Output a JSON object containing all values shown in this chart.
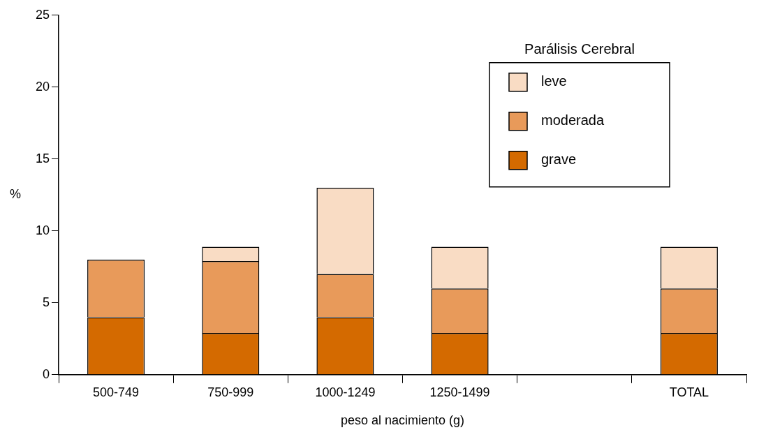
{
  "chart_data": {
    "type": "bar",
    "stacked": true,
    "xlabel": "peso al nacimiento (g)",
    "ylabel": "%",
    "legend_title": "Parálisis Cerebral",
    "legend": "top right",
    "grid": false,
    "categories": [
      "500-749",
      "750-999",
      "1000-1249",
      "1250-1499",
      null,
      "TOTAL"
    ],
    "series": [
      {
        "name": "grave",
        "color": "#d46a00",
        "values": [
          4,
          2.9,
          4,
          2.9,
          null,
          2.9
        ]
      },
      {
        "name": "moderada",
        "color": "#e89a5a",
        "values": [
          4,
          5,
          3,
          3.1,
          null,
          3.1
        ]
      },
      {
        "name": "leve",
        "color": "#f9dcc4",
        "values": [
          0,
          1,
          6,
          2.9,
          null,
          2.9
        ]
      }
    ],
    "ylim": [
      0,
      25
    ],
    "yticks": [
      0,
      5,
      10,
      15,
      20,
      25
    ]
  }
}
